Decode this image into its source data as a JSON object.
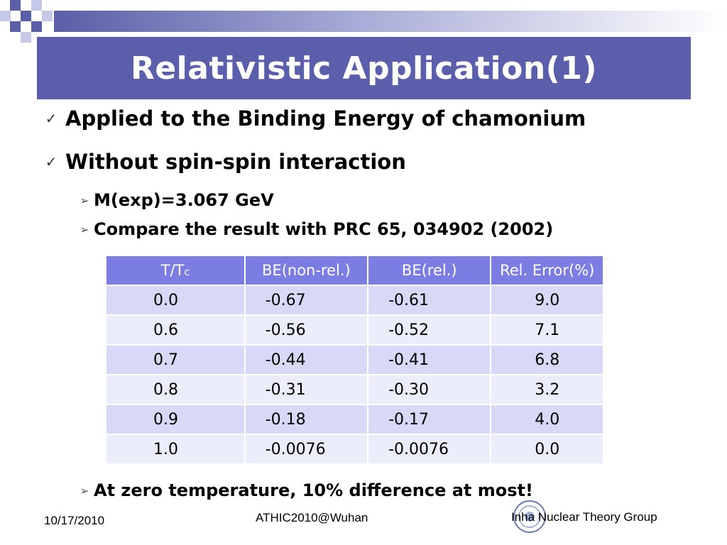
{
  "title": "Relativistic Application(1)",
  "bullets": [
    "Applied to the Binding Energy of chamonium",
    "Without spin-spin interaction"
  ],
  "sub_bullets": [
    "M(exp)=3.067 GeV",
    "Compare the result with PRC 65, 034902 (2002)"
  ],
  "table": {
    "headers": {
      "tt_main": "T/T",
      "tt_sub": "c",
      "be_nonrel": "BE(non-rel.)",
      "be_rel": "BE(rel.)",
      "rel_error": "Rel. Error(%)"
    },
    "rows": [
      [
        "0.0",
        "-0.67",
        "-0.61",
        "9.0"
      ],
      [
        "0.6",
        "-0.56",
        "-0.52",
        "7.1"
      ],
      [
        "0.7",
        "-0.44",
        "-0.41",
        "6.8"
      ],
      [
        "0.8",
        "-0.31",
        "-0.30",
        "3.2"
      ],
      [
        "0.9",
        "-0.18",
        "-0.17",
        "4.0"
      ],
      [
        "1.0",
        "-0.0076",
        "-0.0076",
        "0.0"
      ]
    ]
  },
  "conclusion": "At zero temperature, 10% difference at most!",
  "footer": {
    "date": "10/17/2010",
    "conference": "ATHIC2010@Wuhan",
    "group": "Inha Nuclear Theory Group"
  },
  "colors": {
    "title_bg": "#5b5fab",
    "header_bg": "#7b7de3",
    "row_odd": "#d8d9f7",
    "row_even": "#ecedfa"
  }
}
